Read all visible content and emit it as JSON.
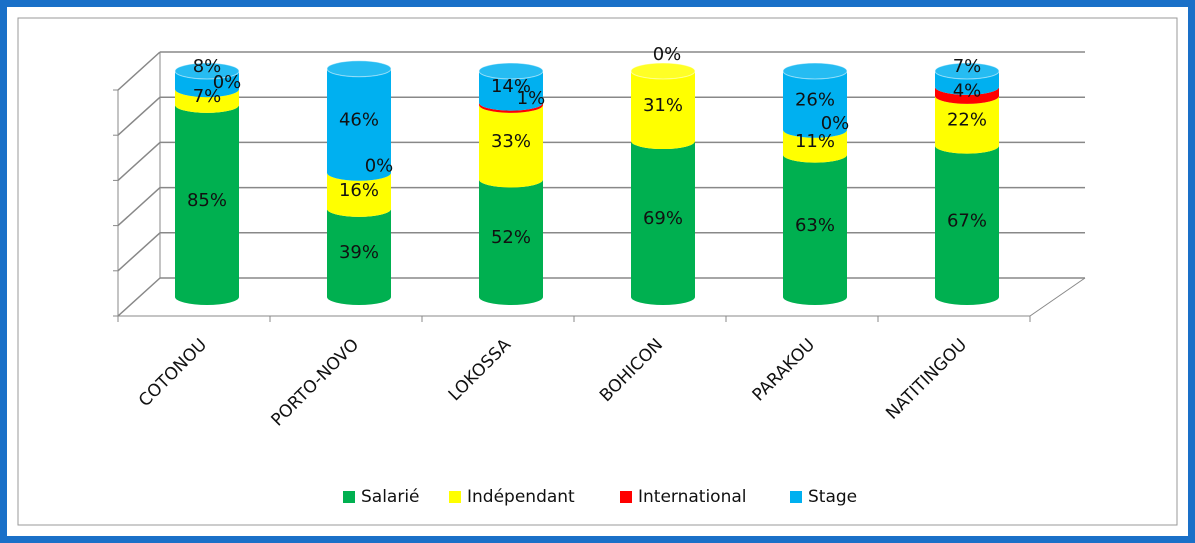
{
  "chart_data": {
    "type": "bar3d_stacked",
    "categories": [
      "COTONOU",
      "PORTO-NOVO",
      "LOKOSSA",
      "BOHICON",
      "PARAKOU",
      "NATITINGOU"
    ],
    "series": [
      {
        "name": "Salarié",
        "color": "#00b050",
        "values": [
          85,
          39,
          52,
          69,
          63,
          67
        ],
        "value_labels": [
          "85%",
          "39%",
          "52%",
          "69%",
          "63%",
          "67%"
        ]
      },
      {
        "name": "Indépendant",
        "color": "#ffff00",
        "values": [
          7,
          16,
          33,
          31,
          11,
          22
        ],
        "value_labels": [
          "7%",
          "16%",
          "33%",
          "31%",
          "11%",
          "22%"
        ]
      },
      {
        "name": "International",
        "color": "#ff0000",
        "values": [
          0,
          0,
          1,
          null,
          0,
          4
        ],
        "value_labels": [
          "0%",
          "0%",
          "1%",
          null,
          "0%",
          "4%"
        ]
      },
      {
        "name": "Stage",
        "color": "#00b0f0",
        "values": [
          8,
          46,
          14,
          0,
          26,
          7
        ],
        "value_labels": [
          "8%",
          "46%",
          "14%",
          "0%",
          "26%",
          "7%"
        ]
      }
    ],
    "ylim": [
      0,
      100
    ],
    "yticks": [
      0,
      20,
      40,
      60,
      80,
      100
    ],
    "grid": true,
    "legend": "bottom"
  }
}
